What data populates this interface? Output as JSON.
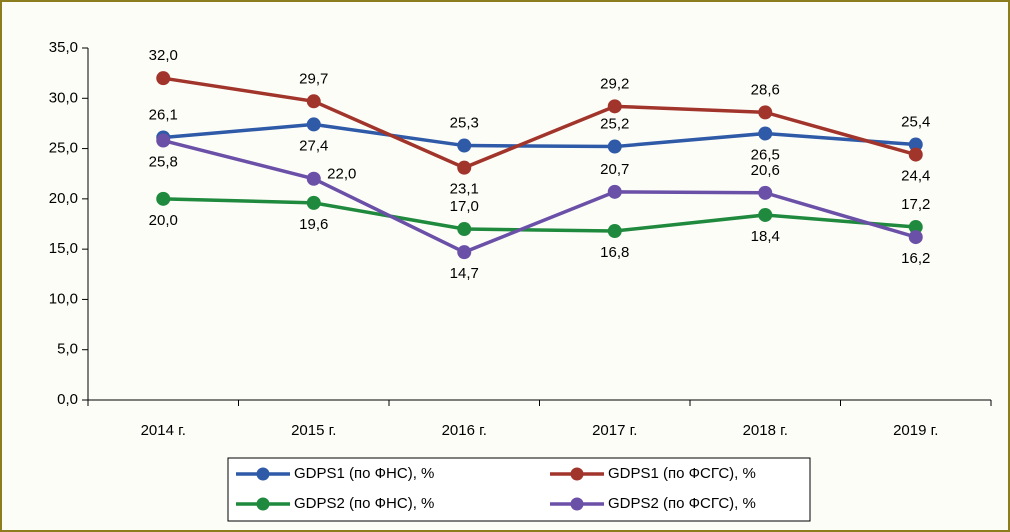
{
  "chart_data": {
    "type": "line",
    "categories": [
      "2014 г.",
      "2015 г.",
      "2016 г.",
      "2017 г.",
      "2018 г.",
      "2019 г."
    ],
    "ylim": [
      0,
      35
    ],
    "yticks": [
      {
        "value": 0,
        "label": "0,0"
      },
      {
        "value": 5,
        "label": "5,0"
      },
      {
        "value": 10,
        "label": "10,0"
      },
      {
        "value": 15,
        "label": "15,0"
      },
      {
        "value": 20,
        "label": "20,0"
      },
      {
        "value": 25,
        "label": "25,0"
      },
      {
        "value": 30,
        "label": "30,0"
      },
      {
        "value": 35,
        "label": "35,0"
      }
    ],
    "grid": false,
    "legend": "bottom",
    "series": [
      {
        "name": "GDPS1 (по ФНС), %",
        "color": "#2f5aa8",
        "values": [
          26.1,
          27.4,
          25.3,
          25.2,
          26.5,
          25.4
        ],
        "value_labels": [
          "26,1",
          "27,4",
          "25,3",
          "25,2",
          "26,5",
          "25,4"
        ]
      },
      {
        "name": "GDPS1 (по ФСГС), %",
        "color": "#a2352b",
        "values": [
          32.0,
          29.7,
          23.1,
          29.2,
          28.6,
          24.4
        ],
        "value_labels": [
          "32,0",
          "29,7",
          "23,1",
          "29,2",
          "28,6",
          "24,4"
        ]
      },
      {
        "name": "GDPS2 (по ФНС), %",
        "color": "#1f8a3d",
        "values": [
          20.0,
          19.6,
          17.0,
          16.8,
          18.4,
          17.2
        ],
        "value_labels": [
          "20,0",
          "19,6",
          "17,0",
          "16,8",
          "18,4",
          "17,2"
        ]
      },
      {
        "name": "GDPS2 (по ФСГС), %",
        "color": "#6b50a8",
        "values": [
          25.8,
          22.0,
          14.7,
          20.7,
          20.6,
          16.2
        ],
        "value_labels": [
          "25,8",
          "22,0",
          "14,7",
          "20,7",
          "20,6",
          "16,2"
        ]
      }
    ]
  }
}
